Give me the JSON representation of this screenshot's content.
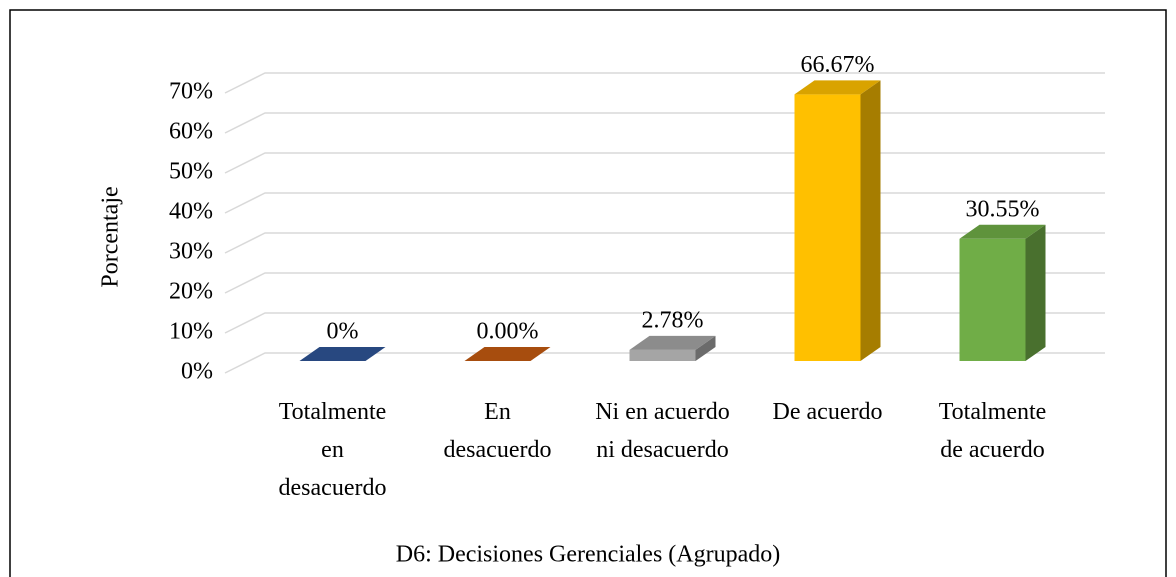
{
  "chart_data": {
    "type": "bar3d",
    "title": "D6: Decisiones Gerenciales (Agrupado)",
    "ylabel": "Porcentaje",
    "categories": [
      "Totalmente en desacuerdo",
      "En desacuerdo",
      "Ni en acuerdo ni desacuerdo",
      "De acuerdo",
      "Totalmente de acuerdo"
    ],
    "values": [
      0,
      0,
      2.78,
      66.67,
      30.55
    ],
    "value_labels": [
      "0%",
      "0.00%",
      "2.78%",
      "66.67%",
      "30.55%"
    ],
    "colors": [
      "#2f5597",
      "#c55a11",
      "#a5a5a5",
      "#ffc000",
      "#70ad47"
    ],
    "ylim": [
      0,
      70
    ],
    "yticks": [
      {
        "value": 0,
        "label": "0%"
      },
      {
        "value": 10,
        "label": "10%"
      },
      {
        "value": 20,
        "label": "20%"
      },
      {
        "value": 30,
        "label": "30%"
      },
      {
        "value": 40,
        "label": "40%"
      },
      {
        "value": 50,
        "label": "50%"
      },
      {
        "value": 60,
        "label": "60%"
      },
      {
        "value": 70,
        "label": "70%"
      }
    ],
    "grid": true
  }
}
